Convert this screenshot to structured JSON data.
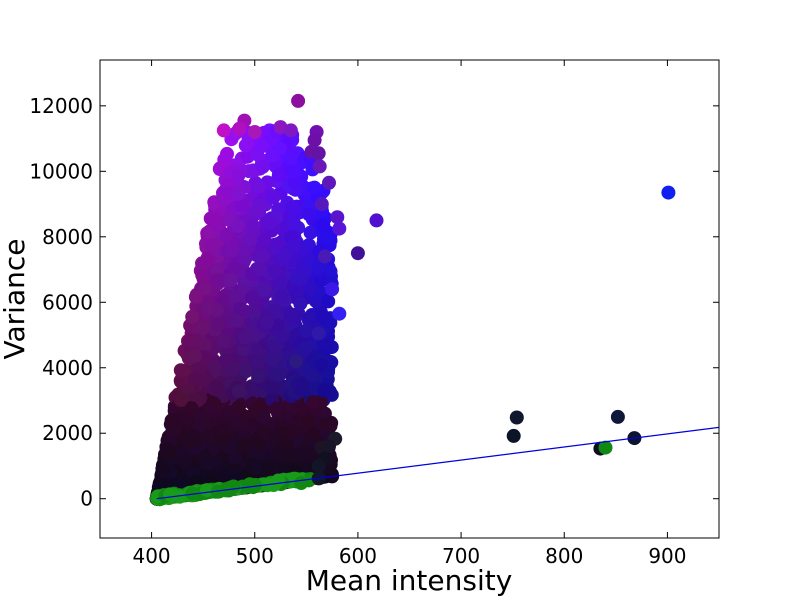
{
  "chart_data": {
    "type": "scatter",
    "title": "",
    "xlabel": "Mean intensity",
    "ylabel": "Variance",
    "xlim": [
      350,
      950
    ],
    "ylim": [
      -1200,
      13400
    ],
    "xticks": [
      400,
      500,
      600,
      700,
      800,
      900
    ],
    "xtick_labels": [
      "400",
      "500",
      "600",
      "700",
      "800",
      "900"
    ],
    "yticks": [
      0,
      2000,
      4000,
      6000,
      8000,
      10000,
      12000
    ],
    "ytick_labels": [
      "0",
      "2000",
      "4000",
      "6000",
      "8000",
      "10000",
      "12000"
    ],
    "grid": false,
    "legend": "none",
    "fit_line": {
      "color": "#0000dd",
      "x": [
        405,
        950
      ],
      "y": [
        0,
        2180
      ]
    },
    "points": [
      {
        "x": 542,
        "y": 12150,
        "c": "#8c0fa0"
      },
      {
        "x": 490,
        "y": 11550,
        "c": "#a010b4"
      },
      {
        "x": 470,
        "y": 11250,
        "c": "#c010c8"
      },
      {
        "x": 485,
        "y": 11300,
        "c": "#b010c0"
      },
      {
        "x": 500,
        "y": 11200,
        "c": "#a818b8"
      },
      {
        "x": 525,
        "y": 11350,
        "c": "#8c18c0"
      },
      {
        "x": 535,
        "y": 11250,
        "c": "#8018c4"
      },
      {
        "x": 560,
        "y": 11200,
        "c": "#7010b0"
      },
      {
        "x": 558,
        "y": 10950,
        "c": "#6c10a8"
      },
      {
        "x": 555,
        "y": 10600,
        "c": "#6a12a8"
      },
      {
        "x": 562,
        "y": 10550,
        "c": "#6414a4"
      },
      {
        "x": 563,
        "y": 10150,
        "c": "#6a18b8"
      },
      {
        "x": 572,
        "y": 9650,
        "c": "#5c18b8"
      },
      {
        "x": 565,
        "y": 9000,
        "c": "#5818c0"
      },
      {
        "x": 580,
        "y": 8600,
        "c": "#5a14cc"
      },
      {
        "x": 582,
        "y": 8250,
        "c": "#5a14d8"
      },
      {
        "x": 618,
        "y": 8500,
        "c": "#5010d0"
      },
      {
        "x": 600,
        "y": 7500,
        "c": "#401098"
      },
      {
        "x": 568,
        "y": 7400,
        "c": "#4a1ab8"
      },
      {
        "x": 575,
        "y": 6400,
        "c": "#3c18e8"
      },
      {
        "x": 582,
        "y": 5650,
        "c": "#3420f0"
      },
      {
        "x": 562,
        "y": 5050,
        "c": "#3018a8"
      },
      {
        "x": 540,
        "y": 4200,
        "c": "#2c1a80"
      },
      {
        "x": 901,
        "y": 9350,
        "c": "#1020f0"
      },
      {
        "x": 754,
        "y": 2480,
        "c": "#101830"
      },
      {
        "x": 751,
        "y": 1920,
        "c": "#0c1428"
      },
      {
        "x": 852,
        "y": 2500,
        "c": "#10183a"
      },
      {
        "x": 868,
        "y": 1850,
        "c": "#0c1430"
      },
      {
        "x": 835,
        "y": 1530,
        "c": "#0a1020"
      },
      {
        "x": 840,
        "y": 1560,
        "c": "#118811"
      },
      {
        "x": 578,
        "y": 1830,
        "c": "#1a1a2a"
      },
      {
        "x": 565,
        "y": 1560,
        "c": "#1c1424"
      },
      {
        "x": 572,
        "y": 1600,
        "c": "#1a1428"
      },
      {
        "x": 568,
        "y": 1230,
        "c": "#101020"
      },
      {
        "x": 562,
        "y": 1000,
        "c": "#141428"
      },
      {
        "x": 562,
        "y": 620,
        "c": "#101828"
      },
      {
        "x": 545,
        "y": 480,
        "c": "#118811"
      },
      {
        "x": 520,
        "y": 470,
        "c": "#1a9a1a"
      },
      {
        "x": 500,
        "y": 420,
        "c": "#118811"
      }
    ]
  }
}
